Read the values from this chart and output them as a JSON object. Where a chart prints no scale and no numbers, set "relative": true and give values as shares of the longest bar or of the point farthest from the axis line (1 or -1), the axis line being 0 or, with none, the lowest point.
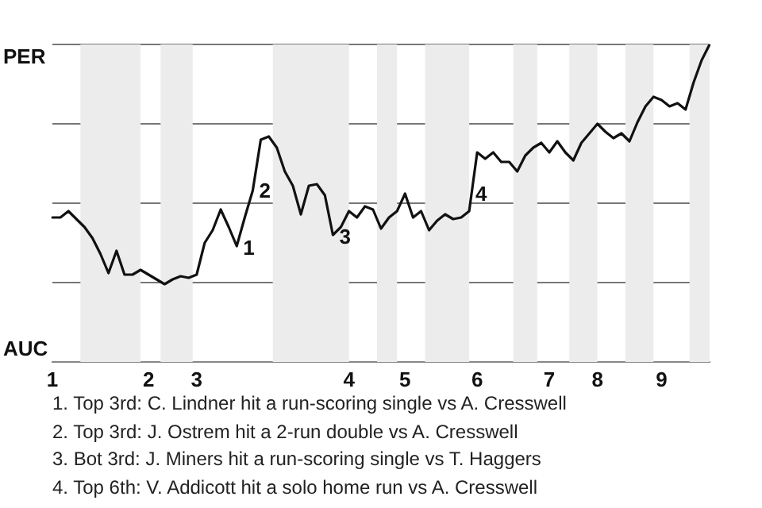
{
  "chart_data": {
    "type": "line",
    "relative": true,
    "categories": [
      "1",
      null,
      null,
      null,
      null,
      null,
      null,
      null,
      null,
      null,
      null,
      null,
      "2",
      null,
      null,
      null,
      null,
      null,
      "3",
      null,
      null,
      null,
      null,
      null,
      null,
      null,
      null,
      null,
      null,
      null,
      null,
      null,
      null,
      null,
      null,
      null,
      null,
      "4",
      null,
      null,
      null,
      null,
      null,
      null,
      "5",
      null,
      null,
      null,
      null,
      null,
      null,
      null,
      null,
      "6",
      null,
      null,
      null,
      null,
      null,
      null,
      null,
      null,
      "7",
      null,
      null,
      null,
      null,
      null,
      "8",
      null,
      null,
      null,
      null,
      null,
      null,
      null,
      "9",
      null,
      null,
      null,
      null,
      null,
      null
    ],
    "grid": "y",
    "legend": false,
    "marker": "none",
    "line_style": "solid",
    "series": [
      {
        "color": "#111111",
        "values": [
          0.455,
          0.455,
          0.475,
          0.45,
          0.425,
          0.39,
          0.34,
          0.28,
          0.35,
          0.275,
          0.275,
          0.29,
          0.275,
          0.26,
          0.245,
          0.26,
          0.27,
          0.265,
          0.275,
          0.375,
          0.415,
          0.48,
          0.425,
          0.365,
          0.455,
          0.54,
          0.7,
          0.71,
          0.675,
          0.6,
          0.555,
          0.465,
          0.555,
          0.56,
          0.525,
          0.4,
          0.425,
          0.475,
          0.455,
          0.49,
          0.48,
          0.42,
          0.455,
          0.475,
          0.53,
          0.455,
          0.475,
          0.415,
          0.445,
          0.465,
          0.45,
          0.455,
          0.475,
          0.66,
          0.64,
          0.66,
          0.63,
          0.63,
          0.6,
          0.65,
          0.675,
          0.69,
          0.66,
          0.695,
          0.66,
          0.635,
          0.69,
          0.72,
          0.75,
          0.725,
          0.705,
          0.72,
          0.695,
          0.755,
          0.805,
          0.835,
          0.825,
          0.805,
          0.815,
          0.795,
          0.88,
          0.95,
          1
        ]
      }
    ],
    "annotations": [
      "PER",
      "AUC",
      "1",
      "2",
      "3",
      "4",
      "1. Top 3rd: C. Lindner hit a run-scoring single vs A. Cresswell",
      "2. Top 3rd: J. Ostrem hit a 2-run double vs A. Cresswell",
      "3. Bot 3rd: J. Miners hit a run-scoring single vs T. Haggers",
      "4. Top 6th: V. Addicott hit a solo home run vs A. Cresswell"
    ]
  }
}
